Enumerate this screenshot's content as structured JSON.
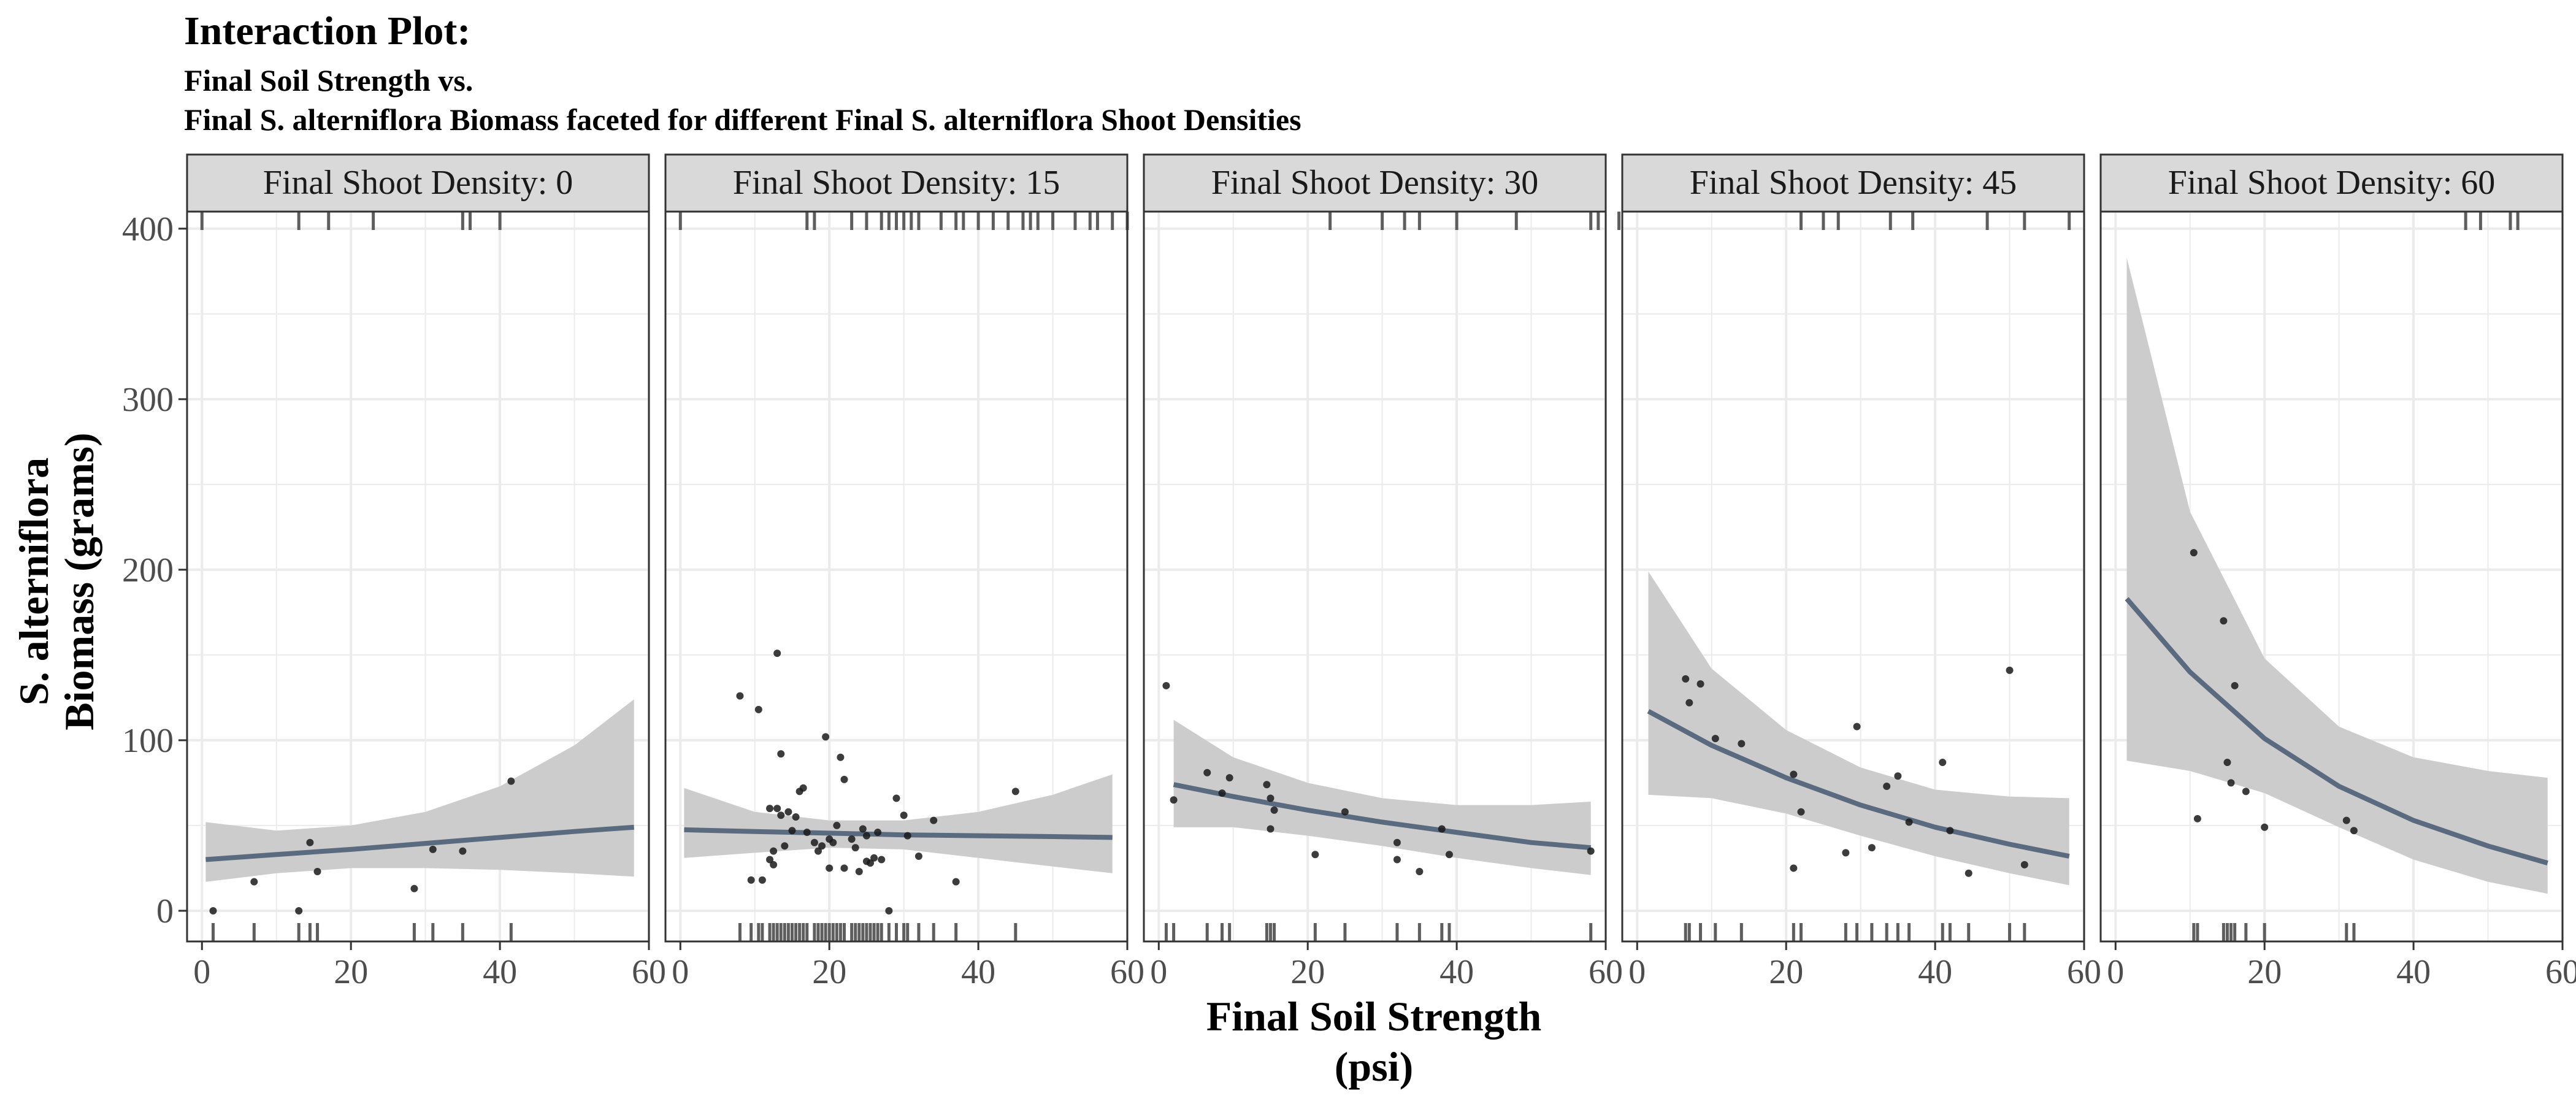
{
  "chart_data": {
    "type": "scatter",
    "title": "Interaction Plot:",
    "subtitle_lines": [
      "Final Soil Strength vs.",
      "Final S. alterniflora Biomass faceted for different Final S. alterniflora Shoot Densities"
    ],
    "xlabel_lines": [
      "Final Soil Strength",
      "(psi)"
    ],
    "ylabel_lines": [
      "S. alterniflora",
      "Biomass (grams)"
    ],
    "xlim": [
      -2,
      60
    ],
    "ylim": [
      -18,
      410
    ],
    "xticks": [
      0,
      20,
      40,
      60
    ],
    "yticks": [
      0,
      100,
      200,
      300,
      400
    ],
    "grid": true,
    "rug": true,
    "facets": [
      {
        "label": "Final Shoot Density: 0",
        "points": [
          [
            1.5,
            0
          ],
          [
            7,
            17
          ],
          [
            13,
            0
          ],
          [
            14.5,
            40
          ],
          [
            15.5,
            23
          ],
          [
            28.5,
            13
          ],
          [
            31,
            36
          ],
          [
            35,
            35
          ],
          [
            41.5,
            76
          ]
        ],
        "rug_x": [
          1.5,
          7,
          13,
          14.5,
          15.5,
          28.5,
          31,
          35,
          41.5
        ],
        "rug_y": [
          0,
          13,
          17,
          23,
          35,
          36,
          40,
          76
        ],
        "fit": [
          [
            0.5,
            30
          ],
          [
            10,
            33
          ],
          [
            20,
            36
          ],
          [
            30,
            39.5
          ],
          [
            40,
            43
          ],
          [
            50,
            46.5
          ],
          [
            58,
            49
          ]
        ],
        "band_upper": [
          [
            0.5,
            52
          ],
          [
            10,
            47
          ],
          [
            20,
            50
          ],
          [
            30,
            58
          ],
          [
            40,
            73
          ],
          [
            50,
            97
          ],
          [
            58,
            124
          ]
        ],
        "band_lower": [
          [
            0.5,
            17
          ],
          [
            10,
            22
          ],
          [
            20,
            25
          ],
          [
            30,
            25
          ],
          [
            40,
            24
          ],
          [
            50,
            22
          ],
          [
            58,
            20
          ]
        ]
      },
      {
        "label": "Final Shoot Density: 15",
        "points": [
          [
            8,
            126
          ],
          [
            9.5,
            18
          ],
          [
            10.5,
            118
          ],
          [
            11,
            18
          ],
          [
            12,
            30
          ],
          [
            12,
            60
          ],
          [
            12.5,
            35
          ],
          [
            12.5,
            27
          ],
          [
            13,
            151
          ],
          [
            13,
            60
          ],
          [
            13.5,
            56
          ],
          [
            13.5,
            92
          ],
          [
            14,
            38
          ],
          [
            14.5,
            58
          ],
          [
            15,
            47
          ],
          [
            15.5,
            55
          ],
          [
            16,
            70
          ],
          [
            16.5,
            72
          ],
          [
            17,
            46
          ],
          [
            18,
            40
          ],
          [
            18.5,
            35
          ],
          [
            19,
            38
          ],
          [
            19.5,
            102
          ],
          [
            20,
            25
          ],
          [
            20,
            42
          ],
          [
            20.5,
            40
          ],
          [
            21,
            50
          ],
          [
            21.5,
            90
          ],
          [
            22,
            77
          ],
          [
            22,
            25
          ],
          [
            23,
            42
          ],
          [
            23.5,
            37
          ],
          [
            24,
            23
          ],
          [
            24.5,
            48
          ],
          [
            25,
            44
          ],
          [
            25,
            29
          ],
          [
            25.5,
            28
          ],
          [
            26,
            31
          ],
          [
            26.5,
            46
          ],
          [
            27,
            30
          ],
          [
            28,
            0
          ],
          [
            29,
            66
          ],
          [
            30,
            56
          ],
          [
            30.5,
            44
          ],
          [
            32,
            32
          ],
          [
            34,
            53
          ],
          [
            37,
            17
          ],
          [
            45,
            70
          ]
        ],
        "rug_x": [
          8,
          9.5,
          10.5,
          11,
          12,
          12.5,
          13,
          13.5,
          14,
          14.5,
          15,
          15.5,
          16,
          16.5,
          17,
          18,
          18.5,
          19,
          19.5,
          20,
          20.5,
          21,
          21.5,
          22,
          23,
          23.5,
          24,
          24.5,
          25,
          25.5,
          26,
          26.5,
          27,
          28,
          29,
          30,
          30.5,
          32,
          34,
          37,
          45
        ],
        "rug_y": [
          0,
          17,
          18,
          23,
          25,
          27,
          28,
          29,
          30,
          31,
          32,
          35,
          37,
          38,
          40,
          42,
          44,
          46,
          47,
          48,
          50,
          53,
          55,
          56,
          58,
          60,
          66,
          70,
          72,
          77,
          90,
          92,
          102,
          118,
          126,
          151
        ],
        "fit": [
          [
            0.5,
            47.5
          ],
          [
            10,
            46.5
          ],
          [
            20,
            45.5
          ],
          [
            30,
            44.5
          ],
          [
            40,
            44
          ],
          [
            50,
            43.5
          ],
          [
            58,
            43
          ]
        ],
        "band_upper": [
          [
            0.5,
            72
          ],
          [
            10,
            58
          ],
          [
            20,
            53
          ],
          [
            30,
            53
          ],
          [
            40,
            58
          ],
          [
            50,
            68
          ],
          [
            58,
            80
          ]
        ],
        "band_lower": [
          [
            0.5,
            31
          ],
          [
            10,
            34
          ],
          [
            20,
            37
          ],
          [
            30,
            36
          ],
          [
            40,
            31
          ],
          [
            50,
            26
          ],
          [
            58,
            22
          ]
        ]
      },
      {
        "label": "Final Shoot Density: 30",
        "points": [
          [
            1,
            132
          ],
          [
            2,
            65
          ],
          [
            6.5,
            81
          ],
          [
            8.5,
            69
          ],
          [
            9.5,
            78
          ],
          [
            14.5,
            74
          ],
          [
            15,
            48
          ],
          [
            15,
            66
          ],
          [
            15.5,
            59
          ],
          [
            21,
            33
          ],
          [
            25,
            58
          ],
          [
            32,
            40
          ],
          [
            32,
            30
          ],
          [
            35,
            23
          ],
          [
            38,
            48
          ],
          [
            39,
            33
          ],
          [
            58,
            35
          ]
        ],
        "rug_x": [
          1,
          2,
          6.5,
          8.5,
          9.5,
          14.5,
          15,
          15.5,
          21,
          25,
          32,
          35,
          38,
          39,
          58
        ],
        "rug_y": [
          23,
          30,
          33,
          35,
          40,
          48,
          58,
          59,
          65,
          66,
          69,
          74,
          78,
          81,
          132
        ],
        "fit": [
          [
            2,
            74
          ],
          [
            10,
            67
          ],
          [
            20,
            59
          ],
          [
            30,
            52
          ],
          [
            40,
            46
          ],
          [
            50,
            40
          ],
          [
            58,
            37
          ]
        ],
        "band_upper": [
          [
            2,
            112
          ],
          [
            10,
            90
          ],
          [
            20,
            75
          ],
          [
            30,
            66
          ],
          [
            40,
            62
          ],
          [
            50,
            62
          ],
          [
            58,
            64
          ]
        ],
        "band_lower": [
          [
            2,
            49
          ],
          [
            10,
            49
          ],
          [
            20,
            44
          ],
          [
            30,
            38
          ],
          [
            40,
            31
          ],
          [
            50,
            25
          ],
          [
            58,
            21
          ]
        ]
      },
      {
        "label": "Final Shoot Density: 45",
        "points": [
          [
            6.5,
            136
          ],
          [
            7,
            122
          ],
          [
            8.5,
            133
          ],
          [
            10.5,
            101
          ],
          [
            14,
            98
          ],
          [
            21,
            80
          ],
          [
            21,
            25
          ],
          [
            22,
            58
          ],
          [
            28,
            34
          ],
          [
            29.5,
            108
          ],
          [
            31.5,
            37
          ],
          [
            33.5,
            73
          ],
          [
            35,
            79
          ],
          [
            36.5,
            52
          ],
          [
            41,
            87
          ],
          [
            42,
            47
          ],
          [
            44.5,
            22
          ],
          [
            50,
            141
          ],
          [
            52,
            27
          ]
        ],
        "rug_x": [
          6.5,
          7,
          8.5,
          10.5,
          14,
          21,
          22,
          28,
          29.5,
          31.5,
          33.5,
          35,
          36.5,
          41,
          42,
          44.5,
          50,
          52
        ],
        "rug_y": [
          22,
          25,
          27,
          34,
          37,
          47,
          52,
          58,
          73,
          79,
          80,
          87,
          98,
          101,
          108,
          122,
          133,
          136,
          141
        ],
        "fit": [
          [
            1.5,
            117
          ],
          [
            10,
            97
          ],
          [
            20,
            78
          ],
          [
            30,
            62
          ],
          [
            40,
            49
          ],
          [
            50,
            39
          ],
          [
            58,
            32
          ]
        ],
        "band_upper": [
          [
            1.5,
            199
          ],
          [
            10,
            142
          ],
          [
            20,
            106
          ],
          [
            30,
            84
          ],
          [
            40,
            71
          ],
          [
            50,
            67
          ],
          [
            58,
            66
          ]
        ],
        "band_lower": [
          [
            1.5,
            68
          ],
          [
            10,
            66
          ],
          [
            20,
            57
          ],
          [
            30,
            44
          ],
          [
            40,
            32
          ],
          [
            50,
            22
          ],
          [
            58,
            15
          ]
        ]
      },
      {
        "label": "Final Shoot Density: 60",
        "points": [
          [
            10.5,
            210
          ],
          [
            11,
            54
          ],
          [
            14.5,
            170
          ],
          [
            15,
            87
          ],
          [
            15.5,
            75
          ],
          [
            16,
            132
          ],
          [
            17.5,
            70
          ],
          [
            20,
            49
          ],
          [
            31,
            53
          ],
          [
            32,
            47
          ]
        ],
        "rug_x": [
          10.5,
          11,
          14.5,
          15,
          15.5,
          16,
          17.5,
          20,
          31,
          32
        ],
        "rug_y": [
          47,
          49,
          53,
          54,
          70,
          75,
          87,
          132,
          170,
          210
        ],
        "fit": [
          [
            1.5,
            183
          ],
          [
            10,
            140
          ],
          [
            20,
            101
          ],
          [
            30,
            73
          ],
          [
            40,
            53
          ],
          [
            50,
            38
          ],
          [
            58,
            28
          ]
        ],
        "band_upper": [
          [
            1.5,
            383
          ],
          [
            10,
            234
          ],
          [
            20,
            148
          ],
          [
            30,
            108
          ],
          [
            40,
            90
          ],
          [
            50,
            82
          ],
          [
            58,
            78
          ]
        ],
        "band_lower": [
          [
            1.5,
            88
          ],
          [
            10,
            82
          ],
          [
            20,
            69
          ],
          [
            30,
            49
          ],
          [
            40,
            30
          ],
          [
            50,
            17
          ],
          [
            58,
            10
          ]
        ]
      }
    ]
  },
  "colors": {
    "point": "#1a1a1a",
    "fit_line": "#5a6b80",
    "band": "#cccccc",
    "grid": "#ebebeb",
    "strip_fill": "#d9d9d9",
    "rug": "#5e5e5e",
    "panel_border": "#333333"
  }
}
